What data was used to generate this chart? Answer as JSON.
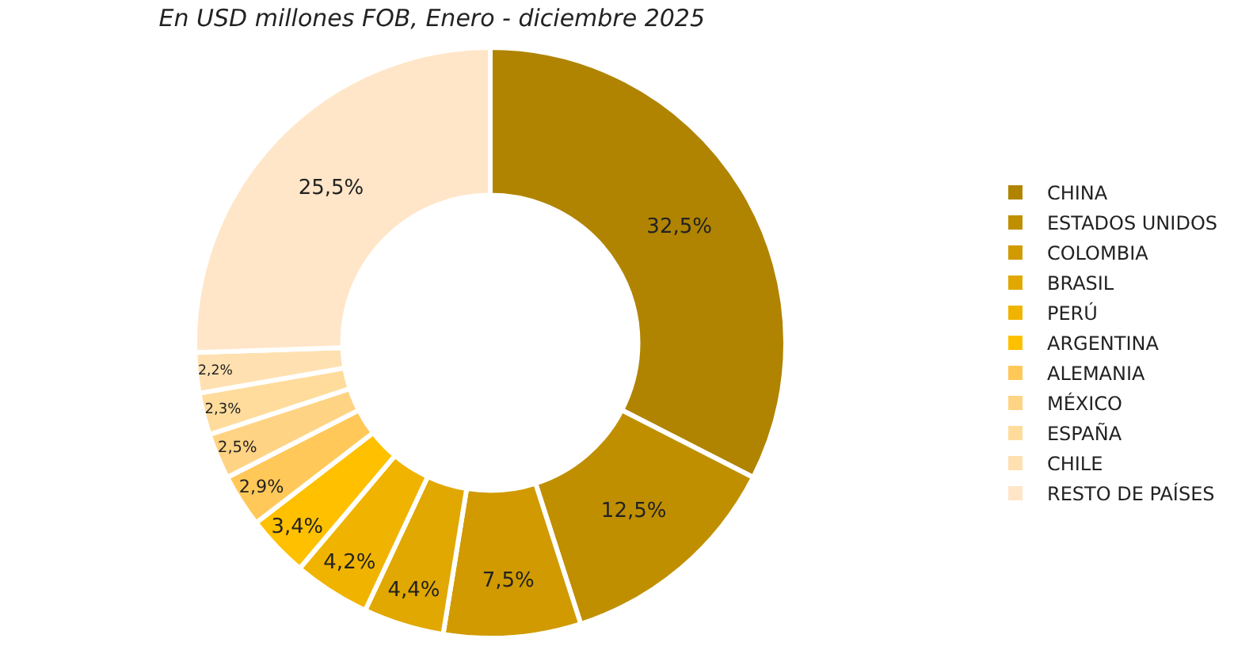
{
  "chart_data": {
    "type": "donut",
    "subtitle": "En USD millones FOB, Enero - diciembre 2025",
    "categories": [
      "CHINA",
      "ESTADOS UNIDOS",
      "COLOMBIA",
      "BRASIL",
      "PERÚ",
      "ARGENTINA",
      "ALEMANIA",
      "MÉXICO",
      "ESPAÑA",
      "CHILE",
      "RESTO DE PAÍSES"
    ],
    "values": [
      32.5,
      12.5,
      7.5,
      4.4,
      4.2,
      3.4,
      2.9,
      2.5,
      2.3,
      2.2,
      25.5
    ],
    "value_labels": [
      "32,5%",
      "12,5%",
      "7,5%",
      "4,4%",
      "4,2%",
      "3,4%",
      "2,9%",
      "2,5%",
      "2,3%",
      "2,2%",
      "25,5%"
    ],
    "colors": [
      "#b08400",
      "#c08f00",
      "#d09a00",
      "#e0a800",
      "#f0b400",
      "#ffc000",
      "#ffc858",
      "#ffd384",
      "#ffdc9c",
      "#ffe0b0",
      "#ffe6c8"
    ],
    "legend": "right"
  }
}
